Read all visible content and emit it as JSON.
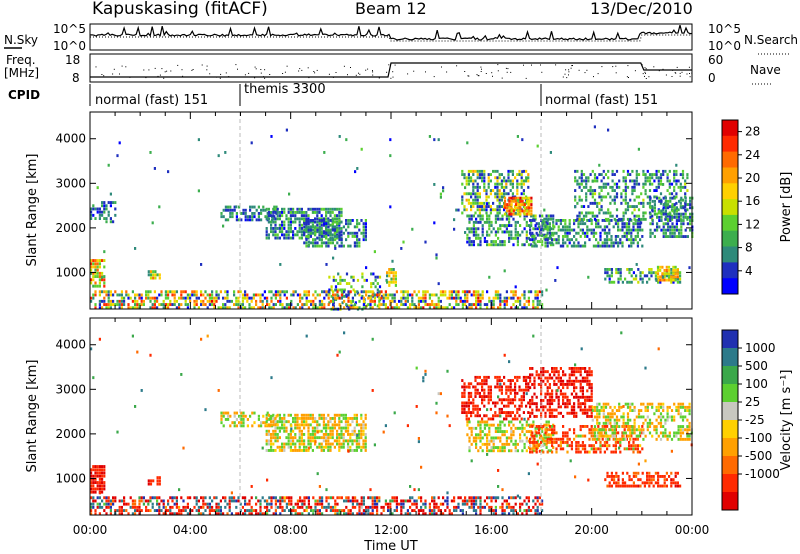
{
  "header": {
    "station": "Kapuskasing (fitACF)",
    "beam": "Beam 12",
    "date": "13/Dec/2010"
  },
  "noise_panel": {
    "left_label": "N.Sky",
    "right_label": "N.Search",
    "left_ticks": [
      "10^5",
      "10^0"
    ],
    "right_ticks": [
      "10^5",
      "10^0"
    ]
  },
  "freq_panel": {
    "left_label_1": "Freq.",
    "left_label_2": "[MHz]",
    "right_label": "Nave",
    "left_ticks": [
      "18",
      "8"
    ],
    "right_ticks": [
      "60",
      "0"
    ]
  },
  "cpid": {
    "label": "CPID",
    "segments": [
      {
        "text": "normal (fast) 151",
        "start_hour": 0
      },
      {
        "text": "themis 3300",
        "start_hour": 6
      },
      {
        "text": "normal (fast) 151",
        "start_hour": 18
      }
    ]
  },
  "axes": {
    "ylabel": "Slant Range [km]",
    "yticks": [
      "1000",
      "2000",
      "3000",
      "4000"
    ],
    "xlabel": "Time UT",
    "xticks": [
      "00:00",
      "04:00",
      "08:00",
      "12:00",
      "16:00",
      "20:00",
      "00:00"
    ]
  },
  "chart_data": [
    {
      "type": "heatmap",
      "title": "Power",
      "x_range_hours": [
        0,
        24
      ],
      "ylim": [
        180,
        4600
      ],
      "colorbar": {
        "label": "Power [dB]",
        "ticks": [
          "4",
          "8",
          "12",
          "16",
          "20",
          "24",
          "28"
        ],
        "colors": [
          "#0000ff",
          "#1e2fbf",
          "#2e8a7a",
          "#3cae4e",
          "#5cd030",
          "#c8e000",
          "#ffd000",
          "#ffa000",
          "#ff6a00",
          "#ff2a00",
          "#e00000"
        ]
      },
      "regions": [
        {
          "t0": 0.0,
          "t1": 0.6,
          "r0": 700,
          "r1": 1300,
          "density": 0.85,
          "val": [
            10,
            28
          ]
        },
        {
          "t0": 0.0,
          "t1": 1.0,
          "r0": 2100,
          "r1": 2600,
          "density": 0.5,
          "val": [
            2,
            10
          ]
        },
        {
          "t0": 2.3,
          "t1": 2.8,
          "r0": 850,
          "r1": 1050,
          "density": 0.6,
          "val": [
            6,
            24
          ]
        },
        {
          "t0": 5.2,
          "t1": 7.4,
          "r0": 2200,
          "r1": 2500,
          "density": 0.55,
          "val": [
            2,
            10
          ]
        },
        {
          "t0": 7.0,
          "t1": 10.0,
          "r0": 1750,
          "r1": 2450,
          "density": 0.7,
          "val": [
            2,
            12
          ]
        },
        {
          "t0": 8.5,
          "t1": 11.0,
          "r0": 1600,
          "r1": 2200,
          "density": 0.6,
          "val": [
            2,
            12
          ]
        },
        {
          "t0": 9.5,
          "t1": 11.8,
          "r0": 150,
          "r1": 1000,
          "density": 0.25,
          "val": [
            1,
            16
          ]
        },
        {
          "t0": 11.8,
          "t1": 12.2,
          "r0": 700,
          "r1": 1100,
          "density": 0.7,
          "val": [
            6,
            22
          ]
        },
        {
          "t0": 14.8,
          "t1": 17.5,
          "r0": 2300,
          "r1": 3300,
          "density": 0.55,
          "val": [
            2,
            20
          ]
        },
        {
          "t0": 15.0,
          "t1": 18.5,
          "r0": 1600,
          "r1": 2300,
          "density": 0.55,
          "val": [
            2,
            14
          ]
        },
        {
          "t0": 16.5,
          "t1": 17.6,
          "r0": 2300,
          "r1": 2700,
          "density": 0.85,
          "val": [
            14,
            28
          ]
        },
        {
          "t0": 17.5,
          "t1": 22.0,
          "r0": 1600,
          "r1": 2200,
          "density": 0.55,
          "val": [
            2,
            12
          ]
        },
        {
          "t0": 19.3,
          "t1": 23.8,
          "r0": 2200,
          "r1": 3300,
          "density": 0.45,
          "val": [
            2,
            14
          ]
        },
        {
          "t0": 22.3,
          "t1": 24.0,
          "r0": 1800,
          "r1": 2700,
          "density": 0.55,
          "val": [
            2,
            12
          ]
        },
        {
          "t0": 20.5,
          "t1": 23.5,
          "r0": 800,
          "r1": 1100,
          "density": 0.55,
          "val": [
            2,
            16
          ]
        },
        {
          "t0": 22.6,
          "t1": 23.4,
          "r0": 800,
          "r1": 1150,
          "density": 0.85,
          "val": [
            12,
            24
          ]
        },
        {
          "t0": 0.0,
          "t1": 18.0,
          "r0": 180,
          "r1": 600,
          "density": 0.55,
          "val": [
            1,
            28
          ]
        },
        {
          "t0": 0.0,
          "t1": 24.0,
          "r0": 600,
          "r1": 4300,
          "density": 0.008,
          "val": [
            1,
            12
          ]
        }
      ]
    },
    {
      "type": "heatmap",
      "title": "Velocity",
      "x_range_hours": [
        0,
        24
      ],
      "ylim": [
        180,
        4600
      ],
      "colorbar": {
        "label": "Velocity [m s⁻¹]",
        "ticks": [
          "1000",
          "500",
          "100",
          "25",
          "-25",
          "-100",
          "-500",
          "-1000"
        ],
        "colors": [
          "#2030b0",
          "#2c7a8a",
          "#3aa84a",
          "#5cd030",
          "#c8c8c0",
          "#ffd000",
          "#ffa000",
          "#ff6a00",
          "#ff2a00",
          "#e00000"
        ]
      },
      "regions": [
        {
          "t0": 0.0,
          "t1": 0.6,
          "r0": 700,
          "r1": 1300,
          "density": 0.85,
          "val": [
            -700,
            -100
          ]
        },
        {
          "t0": 2.3,
          "t1": 2.8,
          "r0": 850,
          "r1": 1050,
          "density": 0.6,
          "val": [
            -600,
            -100
          ]
        },
        {
          "t0": 5.2,
          "t1": 7.4,
          "r0": 2200,
          "r1": 2500,
          "density": 0.5,
          "val": [
            -20,
            20
          ]
        },
        {
          "t0": 7.0,
          "t1": 11.0,
          "r0": 1600,
          "r1": 2450,
          "density": 0.65,
          "val": [
            -20,
            20
          ]
        },
        {
          "t0": 14.8,
          "t1": 17.5,
          "r0": 2300,
          "r1": 3300,
          "density": 0.55,
          "val": [
            -700,
            -100
          ]
        },
        {
          "t0": 17.5,
          "t1": 20.0,
          "r0": 2400,
          "r1": 3500,
          "density": 0.55,
          "val": [
            -800,
            -100
          ]
        },
        {
          "t0": 15.0,
          "t1": 18.5,
          "r0": 1600,
          "r1": 2300,
          "density": 0.55,
          "val": [
            -20,
            20
          ]
        },
        {
          "t0": 17.5,
          "t1": 22.0,
          "r0": 1600,
          "r1": 2200,
          "density": 0.5,
          "val": [
            -300,
            20
          ]
        },
        {
          "t0": 20.0,
          "t1": 24.0,
          "r0": 1900,
          "r1": 2700,
          "density": 0.5,
          "val": [
            -20,
            20
          ]
        },
        {
          "t0": 20.5,
          "t1": 23.5,
          "r0": 800,
          "r1": 1150,
          "density": 0.55,
          "val": [
            -500,
            -20
          ]
        },
        {
          "t0": 0.0,
          "t1": 18.0,
          "r0": 180,
          "r1": 600,
          "density": 0.55,
          "val": [
            -900,
            600
          ]
        },
        {
          "t0": 0.0,
          "t1": 24.0,
          "r0": 600,
          "r1": 4300,
          "density": 0.008,
          "val": [
            -200,
            200
          ]
        }
      ]
    }
  ]
}
